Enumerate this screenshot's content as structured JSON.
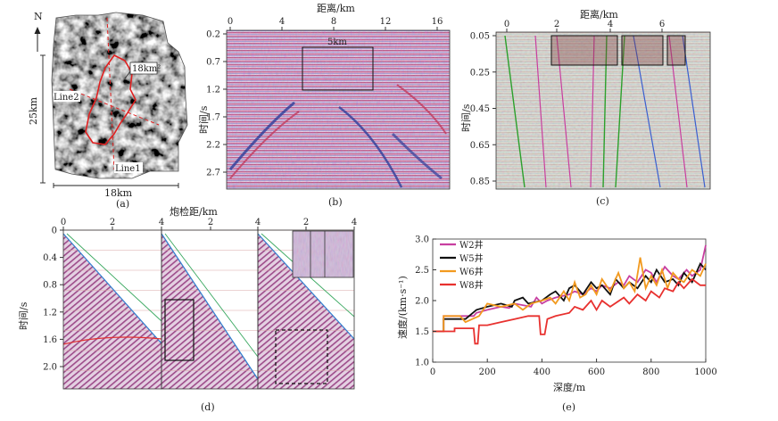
{
  "panels": {
    "a": {
      "caption": "(a)",
      "north": "N",
      "height_label": "25km",
      "width_label": "18km",
      "area_label": "18km²",
      "line2": "Line2",
      "line1": "Line1"
    },
    "b": {
      "caption": "(b)",
      "xlabel": "距离/km",
      "ylabel": "时间/s",
      "xticks": [
        "0",
        "4",
        "8",
        "12",
        "16"
      ],
      "yticks": [
        "0.2",
        "0.7",
        "1.2",
        "1.7",
        "2.2",
        "2.7"
      ],
      "box_label": "5km"
    },
    "c": {
      "caption": "(c)",
      "xlabel": "距离/km",
      "ylabel": "时间/s",
      "xticks": [
        "0",
        "2",
        "4",
        "6"
      ],
      "yticks": [
        "0.05",
        "0.25",
        "0.45",
        "0.65",
        "0.85"
      ]
    },
    "d": {
      "caption": "(d)",
      "xlabel": "炮检距/km",
      "ylabel": "时间/s",
      "xticks": [
        "0",
        "2",
        "4",
        "2",
        "4",
        "2",
        "4"
      ],
      "yticks": [
        "0",
        "0.4",
        "0.8",
        "1.2",
        "1.6",
        "2.0"
      ]
    }
  },
  "chart_data": {
    "type": "line",
    "caption": "(e)",
    "xlabel": "深度/m",
    "ylabel": "速度/(km·s⁻¹)",
    "xlim": [
      0,
      1000
    ],
    "ylim": [
      1.0,
      3.0
    ],
    "xticks": [
      "0",
      "200",
      "400",
      "600",
      "800",
      "1000"
    ],
    "yticks": [
      "1.0",
      "1.5",
      "2.0",
      "2.5",
      "3.0"
    ],
    "legend": "top-left",
    "series": [
      {
        "name": "W2井",
        "color": "#c83fa0",
        "x": [
          0,
          40,
          40,
          150,
          160,
          200,
          250,
          280,
          300,
          360,
          380,
          400,
          420,
          450,
          500,
          520,
          550,
          580,
          600,
          620,
          650,
          680,
          700,
          720,
          750,
          780,
          800,
          820,
          850,
          880,
          900,
          930,
          950,
          980,
          1000
        ],
        "y": [
          1.5,
          1.5,
          1.75,
          1.75,
          1.8,
          1.85,
          1.9,
          1.88,
          1.95,
          1.9,
          2.05,
          1.95,
          2.0,
          2.05,
          2.1,
          2.15,
          2.1,
          2.2,
          2.15,
          2.25,
          2.2,
          2.3,
          2.25,
          2.4,
          2.3,
          2.5,
          2.45,
          2.3,
          2.55,
          2.4,
          2.35,
          2.5,
          2.4,
          2.5,
          2.9
        ]
      },
      {
        "name": "W5井",
        "color": "#111111",
        "x": [
          0,
          40,
          40,
          120,
          160,
          200,
          250,
          290,
          300,
          330,
          350,
          400,
          430,
          450,
          480,
          500,
          520,
          550,
          580,
          600,
          620,
          650,
          670,
          700,
          720,
          750,
          780,
          800,
          820,
          850,
          880,
          900,
          920,
          950,
          980,
          1000
        ],
        "y": [
          1.5,
          1.5,
          1.7,
          1.7,
          1.85,
          1.9,
          1.95,
          1.9,
          2.0,
          2.05,
          1.95,
          2.0,
          2.1,
          2.15,
          2.0,
          2.2,
          2.25,
          2.1,
          2.3,
          2.2,
          2.25,
          2.1,
          2.35,
          2.2,
          2.3,
          2.2,
          2.4,
          2.3,
          2.5,
          2.3,
          2.35,
          2.25,
          2.45,
          2.3,
          2.6,
          2.5
        ]
      },
      {
        "name": "W6井",
        "color": "#f29a1f",
        "x": [
          0,
          40,
          40,
          100,
          120,
          170,
          200,
          250,
          300,
          330,
          360,
          400,
          430,
          450,
          480,
          500,
          520,
          540,
          560,
          580,
          600,
          620,
          650,
          680,
          700,
          720,
          740,
          760,
          780,
          800,
          820,
          840,
          860,
          880,
          900,
          920,
          950,
          980,
          1000
        ],
        "y": [
          1.5,
          1.5,
          1.75,
          1.75,
          1.65,
          1.75,
          1.95,
          1.9,
          1.95,
          1.85,
          1.95,
          2.0,
          2.05,
          1.95,
          2.15,
          2.0,
          2.3,
          2.05,
          2.1,
          2.25,
          2.1,
          2.35,
          2.15,
          2.45,
          2.2,
          2.3,
          2.15,
          2.7,
          2.2,
          2.4,
          2.25,
          2.5,
          2.2,
          2.45,
          2.35,
          2.3,
          2.5,
          2.4,
          2.6
        ]
      },
      {
        "name": "W8井",
        "color": "#e8312f",
        "x": [
          0,
          80,
          80,
          150,
          155,
          165,
          170,
          200,
          250,
          300,
          350,
          390,
          395,
          410,
          420,
          450,
          500,
          520,
          550,
          580,
          600,
          620,
          650,
          700,
          720,
          750,
          780,
          800,
          830,
          850,
          880,
          900,
          920,
          950,
          980,
          1000
        ],
        "y": [
          1.5,
          1.5,
          1.55,
          1.55,
          1.3,
          1.3,
          1.6,
          1.6,
          1.65,
          1.7,
          1.75,
          1.75,
          1.45,
          1.45,
          1.7,
          1.75,
          1.8,
          1.9,
          1.85,
          2.0,
          1.85,
          2.0,
          1.9,
          2.05,
          1.95,
          2.1,
          2.0,
          2.15,
          2.05,
          2.2,
          2.15,
          2.3,
          2.2,
          2.35,
          2.25,
          2.25
        ]
      }
    ]
  }
}
